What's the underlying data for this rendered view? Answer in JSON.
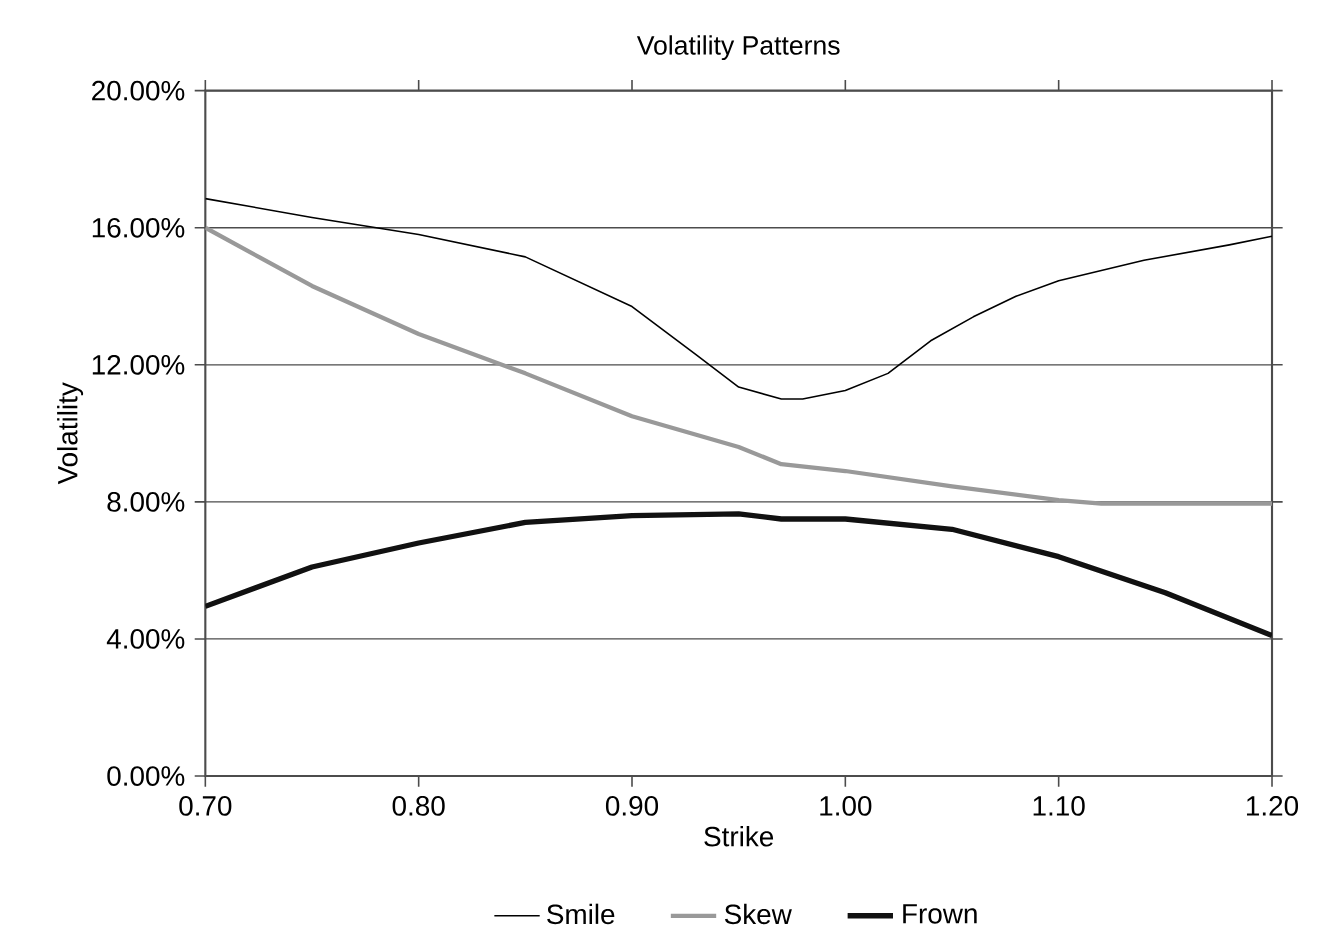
{
  "chart_data": {
    "type": "line",
    "title": "Volatility Patterns",
    "xlabel": "Strike",
    "ylabel": "Volatility",
    "xlim": [
      0.7,
      1.2
    ],
    "ylim": [
      0,
      20
    ],
    "xticks": [
      {
        "value": 0.7,
        "label": "0.70"
      },
      {
        "value": 0.8,
        "label": "0.80"
      },
      {
        "value": 0.9,
        "label": "0.90"
      },
      {
        "value": 1.0,
        "label": "1.00"
      },
      {
        "value": 1.1,
        "label": "1.10"
      },
      {
        "value": 1.2,
        "label": "1.20"
      }
    ],
    "yticks": [
      {
        "value": 0,
        "label": "0.00%"
      },
      {
        "value": 4,
        "label": "4.00%"
      },
      {
        "value": 8,
        "label": "8.00%"
      },
      {
        "value": 12,
        "label": "12.00%"
      },
      {
        "value": 16,
        "label": "16.00%"
      },
      {
        "value": 20,
        "label": "20.00%"
      }
    ],
    "grid": "y",
    "legend": "bottom",
    "marker": "none",
    "line_style": "solid",
    "series": [
      {
        "name": "Smile",
        "color": "#000000",
        "x": [
          0.7,
          0.75,
          0.8,
          0.85,
          0.9,
          0.93,
          0.95,
          0.97,
          0.98,
          1.0,
          1.02,
          1.04,
          1.06,
          1.08,
          1.1,
          1.14,
          1.18,
          1.2
        ],
        "values": [
          16.85,
          16.3,
          15.8,
          15.15,
          13.7,
          12.3,
          11.35,
          11.0,
          11.0,
          11.25,
          11.75,
          12.7,
          13.4,
          14.0,
          14.45,
          15.05,
          15.5,
          15.75
        ]
      },
      {
        "name": "Skew",
        "color": "#999999",
        "x": [
          0.7,
          0.75,
          0.8,
          0.85,
          0.9,
          0.95,
          0.97,
          1.0,
          1.05,
          1.1,
          1.12,
          1.2
        ],
        "values": [
          16.0,
          14.3,
          12.9,
          11.75,
          10.5,
          9.6,
          9.1,
          8.9,
          8.45,
          8.05,
          7.95,
          7.95
        ]
      },
      {
        "name": "Frown",
        "color": "#111111",
        "x": [
          0.7,
          0.75,
          0.8,
          0.85,
          0.9,
          0.95,
          0.97,
          1.0,
          1.05,
          1.1,
          1.15,
          1.2
        ],
        "values": [
          4.95,
          6.1,
          6.8,
          7.4,
          7.6,
          7.65,
          7.5,
          7.5,
          7.2,
          6.4,
          5.35,
          4.1
        ]
      }
    ]
  }
}
